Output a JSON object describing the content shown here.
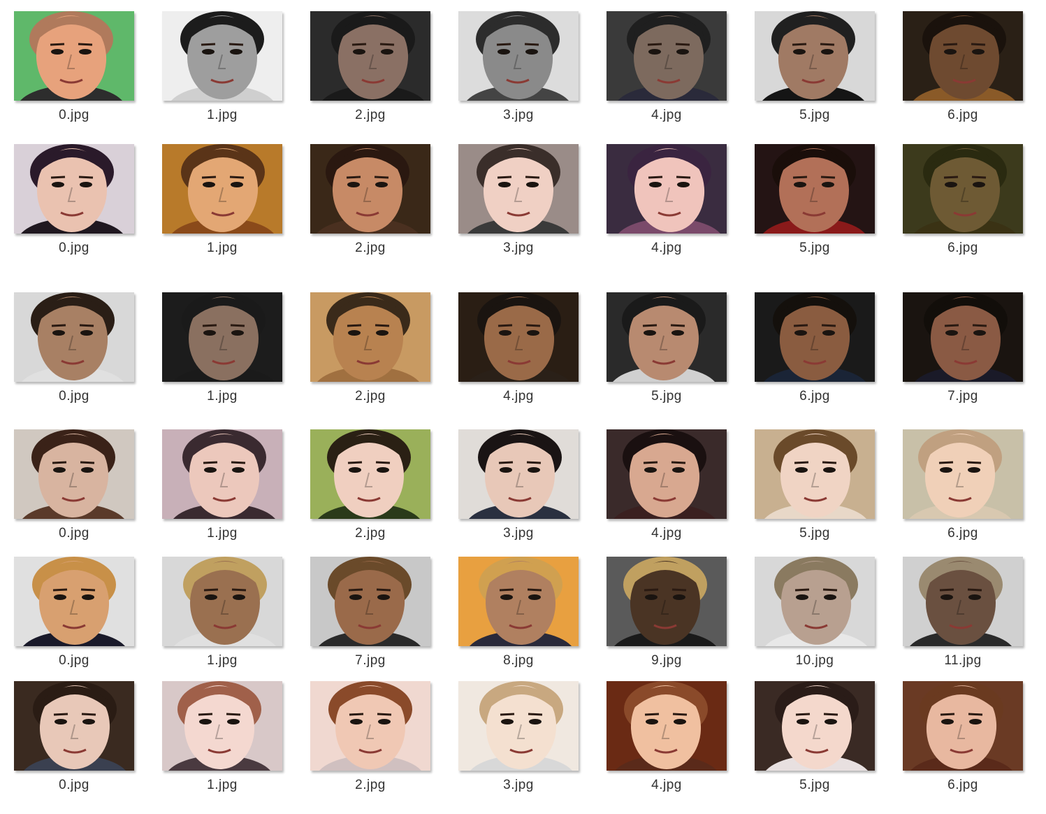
{
  "rows": [
    {
      "files": [
        "0.jpg",
        "1.jpg",
        "2.jpg",
        "3.jpg",
        "4.jpg",
        "5.jpg",
        "6.jpg"
      ],
      "bg": [
        "#5fb86a",
        "#eeeeee",
        "#2b2b2b",
        "#dcdcdc",
        "#3a3a3a",
        "#d8d8d8",
        "#2a2016"
      ],
      "skin": [
        "#e7a27c",
        "#9e9e9e",
        "#8a7064",
        "#8a8a8a",
        "#7d6a5e",
        "#a07a64",
        "#6e4a30"
      ],
      "hair": [
        "#b07a5c",
        "#1c1c1c",
        "#1a1a1a",
        "#2c2c2c",
        "#1f1f1f",
        "#202020",
        "#1a120c"
      ],
      "cloth": [
        "#2d2d2d",
        "#cfcfcf",
        "#1a1a1a",
        "#444444",
        "#2a2a3a",
        "#151515",
        "#8a5a28"
      ]
    },
    {
      "files": [
        "0.jpg",
        "1.jpg",
        "2.jpg",
        "3.jpg",
        "4.jpg",
        "5.jpg",
        "6.jpg"
      ],
      "bg": [
        "#d9d0d8",
        "#b87a2a",
        "#3a2818",
        "#9a8c88",
        "#3a2c40",
        "#241414",
        "#3c3a1c"
      ],
      "skin": [
        "#eac2b0",
        "#e3a774",
        "#c78a66",
        "#f0d0c4",
        "#f0c4bc",
        "#b27058",
        "#6e5a34"
      ],
      "hair": [
        "#2a1a2a",
        "#5a3418",
        "#2a1810",
        "#3a2e2a",
        "#3a2440",
        "#1a0e0a",
        "#2a2a10"
      ],
      "cloth": [
        "#201820",
        "#8a4a1a",
        "#4a3020",
        "#3a3a3a",
        "#7a4a6a",
        "#8a1a1a",
        "#3a3214"
      ]
    },
    {
      "files": [
        "0.jpg",
        "1.jpg",
        "2.jpg",
        "4.jpg",
        "5.jpg",
        "6.jpg",
        "7.jpg"
      ],
      "bg": [
        "#d8d8d8",
        "#1c1c1c",
        "#c89a62",
        "#2a1e14",
        "#2a2a2a",
        "#1a1a1a",
        "#1a1410"
      ],
      "skin": [
        "#a88064",
        "#8a7060",
        "#b88250",
        "#9a6a48",
        "#b88a70",
        "#8a5c40",
        "#8a5a44"
      ],
      "hair": [
        "#2a1e16",
        "#1a1a1a",
        "#3a2a1a",
        "#1a1410",
        "#1a1a1a",
        "#14100c",
        "#120e0a"
      ],
      "cloth": [
        "#e0e0e0",
        "#1a1a1a",
        "#a07040",
        "#2a2018",
        "#d0d0d0",
        "#1a2436",
        "#1a1a28"
      ]
    },
    {
      "files": [
        "0.jpg",
        "1.jpg",
        "2.jpg",
        "3.jpg",
        "4.jpg",
        "5.jpg",
        "6.jpg"
      ],
      "bg": [
        "#d0c8c0",
        "#c8b0b8",
        "#9ab05a",
        "#e0dcd8",
        "#3a2a2a",
        "#c8b090",
        "#c8c0a8"
      ],
      "skin": [
        "#d8b4a0",
        "#ecc8bc",
        "#f0cfc0",
        "#e8c8b8",
        "#d8a890",
        "#f0d4c4",
        "#f0d0b8"
      ],
      "hair": [
        "#3a2218",
        "#3a2a30",
        "#2a2014",
        "#1a1414",
        "#1a1010",
        "#6a4a2a",
        "#c0a080"
      ],
      "cloth": [
        "#5a3a2a",
        "#3a2a30",
        "#2a3a1a",
        "#2a3040",
        "#3a2020",
        "#e8d8c8",
        "#d8c8b0"
      ]
    },
    {
      "files": [
        "0.jpg",
        "1.jpg",
        "7.jpg",
        "8.jpg",
        "9.jpg",
        "10.jpg",
        "11.jpg"
      ],
      "bg": [
        "#e0e0e0",
        "#d8d8d8",
        "#c8c8c8",
        "#e8a040",
        "#5a5a5a",
        "#d8d8d8",
        "#d0d0d0"
      ],
      "skin": [
        "#d8a070",
        "#9a7050",
        "#9a6a4a",
        "#b08060",
        "#4a3424",
        "#b8a090",
        "#6a5040"
      ],
      "hair": [
        "#c89048",
        "#c0a060",
        "#6a4a2a",
        "#d0a050",
        "#c0a060",
        "#8a7a60",
        "#9a8a70"
      ],
      "cloth": [
        "#1a1a2a",
        "#e0e0e0",
        "#2a2a2a",
        "#2a2a3a",
        "#1a1a1a",
        "#e8e8e8",
        "#2a2a2a"
      ]
    },
    {
      "files": [
        "0.jpg",
        "1.jpg",
        "2.jpg",
        "3.jpg",
        "4.jpg",
        "5.jpg",
        "6.jpg"
      ],
      "bg": [
        "#3a2a20",
        "#d8c8c8",
        "#f0d8d0",
        "#f0e8e0",
        "#6a2a14",
        "#3a2a24",
        "#6a3a24"
      ],
      "skin": [
        "#e8c8b8",
        "#f4d8d0",
        "#f0c8b4",
        "#f4e0d0",
        "#f0c0a0",
        "#f4d8cc",
        "#e8b8a0"
      ],
      "hair": [
        "#2a1c14",
        "#a0604a",
        "#8a4a2a",
        "#c8a880",
        "#8a4a2a",
        "#2a1c18",
        "#6a3a20"
      ],
      "cloth": [
        "#3a4050",
        "#4a3a40",
        "#d0c0c0",
        "#d8d8d8",
        "#5a2a1a",
        "#e8e0e0",
        "#5a2a1a"
      ]
    }
  ]
}
